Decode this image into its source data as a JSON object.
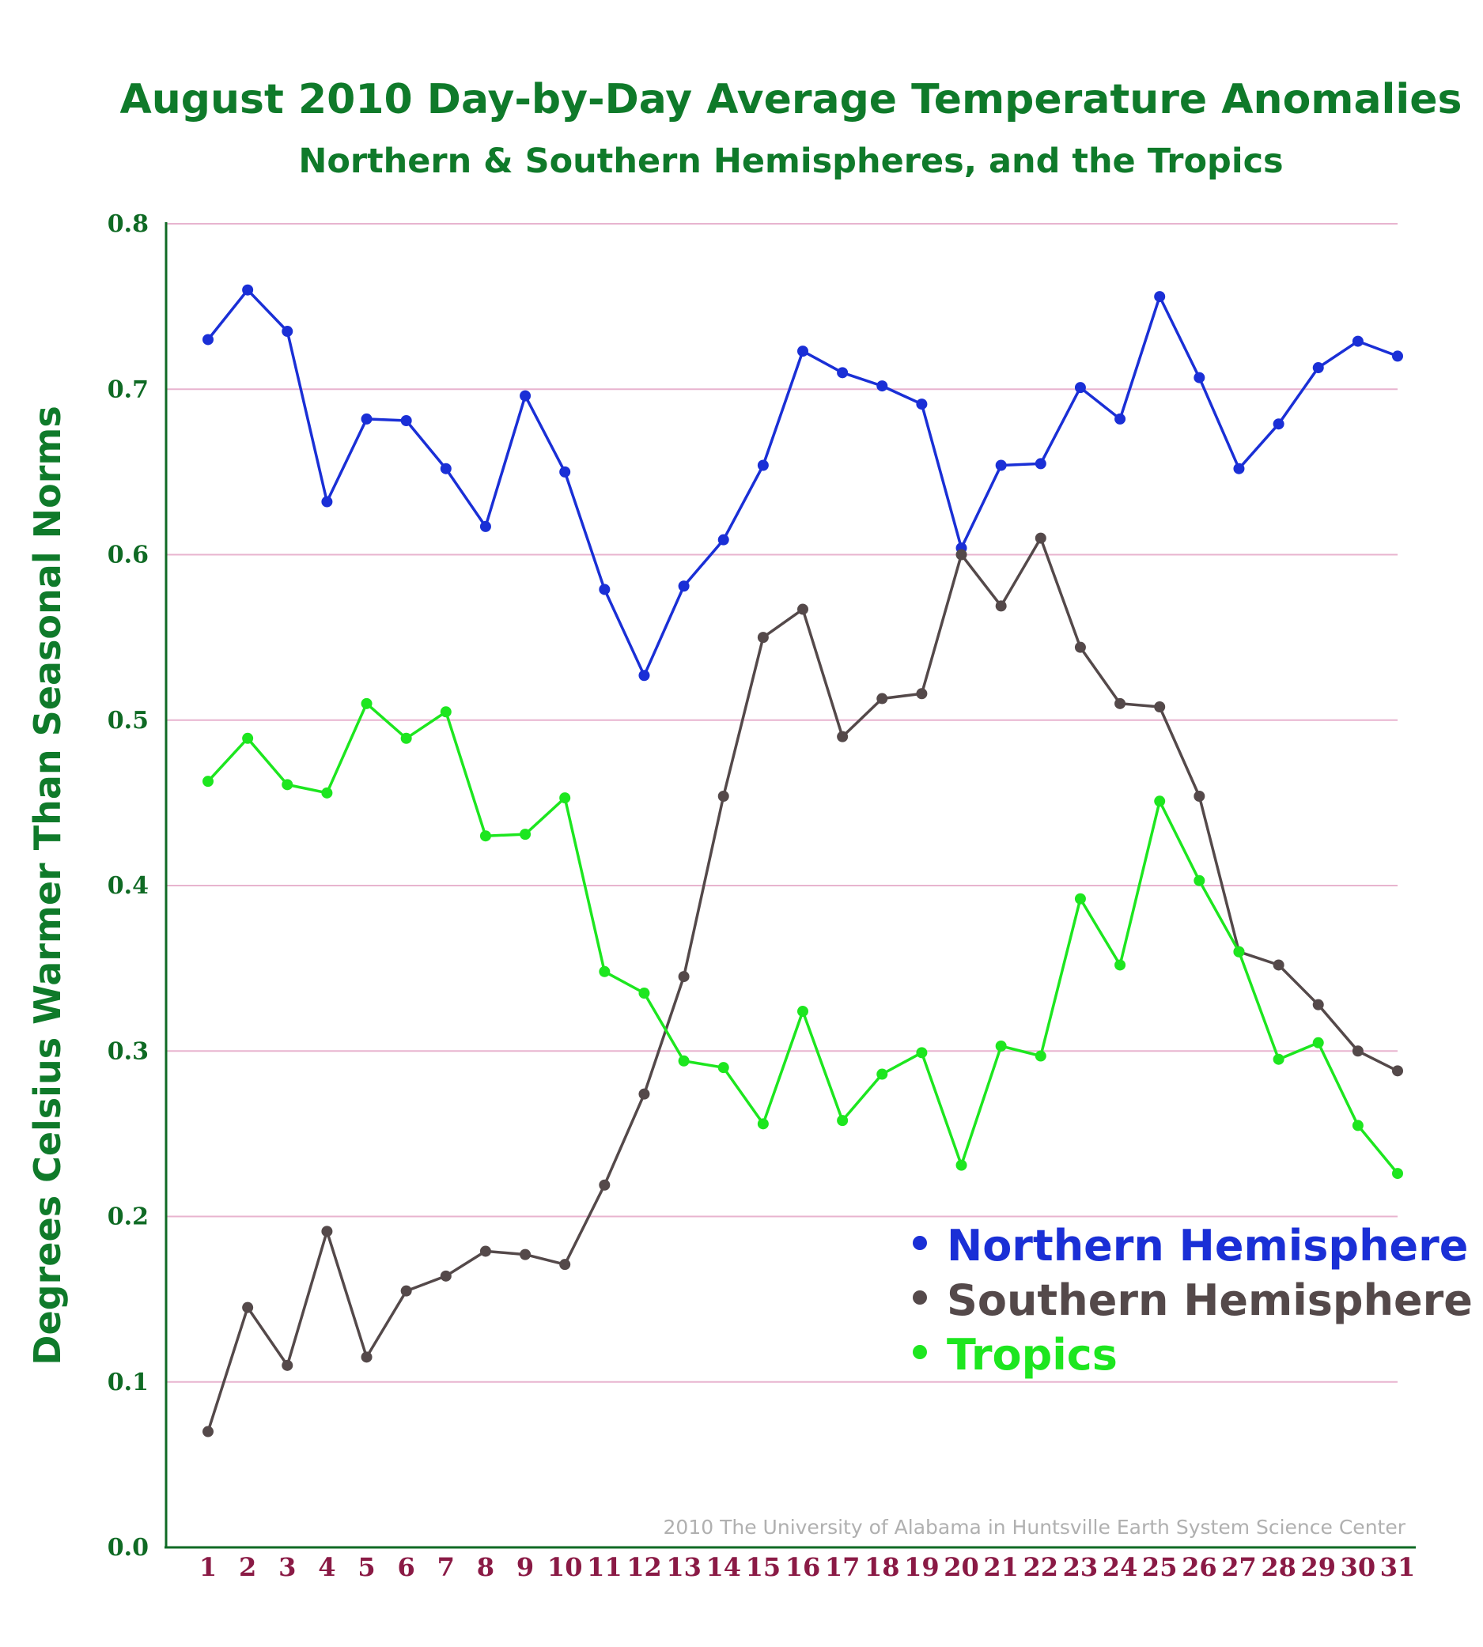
{
  "chart_data": {
    "type": "line",
    "title": "August 2010 Day-by-Day Average Temperature Anomalies",
    "subtitle": "Northern & Southern Hemispheres, and the Tropics",
    "ylabel": "Degrees Celsius Warmer Than Seasonal Norms",
    "xlabel": "",
    "credit": "2010 The University of Alabama in Huntsville Earth System Science Center",
    "ylim": [
      0.0,
      0.8
    ],
    "yticks": [
      "0.0",
      "0.1",
      "0.2",
      "0.3",
      "0.4",
      "0.5",
      "0.6",
      "0.7",
      "0.8"
    ],
    "grid": "horizontal",
    "legend_position": "lower-right",
    "x": [
      1,
      2,
      3,
      4,
      5,
      6,
      7,
      8,
      9,
      10,
      11,
      12,
      13,
      14,
      15,
      16,
      17,
      18,
      19,
      20,
      21,
      22,
      23,
      24,
      25,
      26,
      27,
      28,
      29,
      30,
      31
    ],
    "series": [
      {
        "name": "Northern Hemisphere",
        "color": "#1a2fd6",
        "values": [
          0.73,
          0.76,
          0.735,
          0.632,
          0.682,
          0.681,
          0.652,
          0.617,
          0.696,
          0.65,
          0.579,
          0.527,
          0.581,
          0.609,
          0.654,
          0.723,
          0.71,
          0.702,
          0.691,
          0.604,
          0.654,
          0.655,
          0.701,
          0.682,
          0.756,
          0.707,
          0.652,
          0.679,
          0.713,
          0.729,
          0.72
        ]
      },
      {
        "name": "Southern Hemisphere",
        "color": "#54494a",
        "values": [
          0.07,
          0.145,
          0.11,
          0.191,
          0.115,
          0.155,
          0.164,
          0.179,
          0.177,
          0.171,
          0.219,
          0.274,
          0.345,
          0.454,
          0.55,
          0.567,
          0.49,
          0.513,
          0.516,
          0.6,
          0.569,
          0.61,
          0.544,
          0.51,
          0.508,
          0.454,
          0.36,
          0.352,
          0.328,
          0.3,
          0.288
        ]
      },
      {
        "name": "Tropics",
        "color": "#1de61f",
        "values": [
          0.463,
          0.489,
          0.461,
          0.456,
          0.51,
          0.489,
          0.505,
          0.43,
          0.431,
          0.453,
          0.348,
          0.335,
          0.294,
          0.29,
          0.256,
          0.324,
          0.258,
          0.286,
          0.299,
          0.231,
          0.303,
          0.297,
          0.392,
          0.352,
          0.451,
          0.403,
          0.36,
          0.295,
          0.305,
          0.255,
          0.226
        ]
      }
    ]
  },
  "colors": {
    "title": "#0f7a2a",
    "axis": "#0f6a24",
    "grid": "#e8b4cf",
    "xtick": "#8a1a45",
    "credit": "#b0b0b0"
  }
}
